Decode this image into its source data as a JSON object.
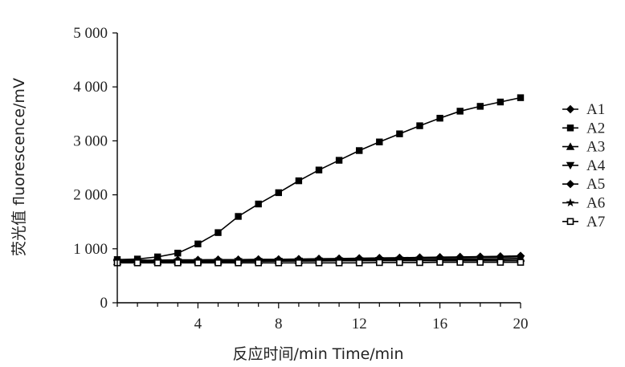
{
  "chart_data": {
    "type": "line",
    "title": "",
    "xlabel": "反应时间/min Time/min",
    "ylabel": "荧光值 fluorescence/mV",
    "xlim": [
      0,
      20
    ],
    "ylim": [
      0,
      5000
    ],
    "x_ticks": [
      4,
      8,
      12,
      16,
      20
    ],
    "x_tick_labels": [
      "4",
      "8",
      "12",
      "16",
      "20"
    ],
    "y_ticks": [
      0,
      1000,
      2000,
      3000,
      4000,
      5000
    ],
    "y_tick_labels": [
      "0",
      "1 000",
      "2 000",
      "3 000",
      "4 000",
      "5 000"
    ],
    "grid": false,
    "legend_position": "right",
    "x": [
      0,
      1,
      2,
      3,
      4,
      5,
      6,
      7,
      8,
      9,
      10,
      11,
      12,
      13,
      14,
      15,
      16,
      17,
      18,
      19,
      20
    ],
    "series": [
      {
        "name": "A1",
        "marker": "diamond",
        "values": [
          780,
          780,
          780,
          780,
          780,
          780,
          780,
          780,
          780,
          780,
          780,
          780,
          780,
          780,
          780,
          780,
          780,
          780,
          780,
          780,
          780
        ]
      },
      {
        "name": "A2",
        "marker": "square",
        "values": [
          800,
          810,
          850,
          920,
          1090,
          1300,
          1600,
          1830,
          2040,
          2260,
          2460,
          2640,
          2820,
          2980,
          3130,
          3280,
          3420,
          3550,
          3640,
          3720,
          3800
        ]
      },
      {
        "name": "A3",
        "marker": "triangle-up",
        "values": [
          760,
          760,
          765,
          765,
          770,
          770,
          775,
          775,
          780,
          780,
          785,
          785,
          790,
          795,
          800,
          800,
          805,
          810,
          810,
          815,
          820
        ]
      },
      {
        "name": "A4",
        "marker": "triangle-down",
        "values": [
          750,
          752,
          755,
          758,
          760,
          762,
          765,
          768,
          770,
          772,
          775,
          778,
          780,
          785,
          790,
          792,
          795,
          798,
          800,
          805,
          810
        ]
      },
      {
        "name": "A5",
        "marker": "diamond",
        "values": [
          790,
          790,
          790,
          795,
          795,
          800,
          800,
          805,
          805,
          810,
          815,
          820,
          825,
          830,
          835,
          840,
          845,
          850,
          855,
          860,
          870
        ]
      },
      {
        "name": "A6",
        "marker": "star",
        "values": [
          770,
          772,
          775,
          778,
          780,
          782,
          785,
          788,
          790,
          795,
          800,
          805,
          810,
          815,
          820,
          825,
          830,
          835,
          840,
          845,
          850
        ]
      },
      {
        "name": "A7",
        "marker": "square-open",
        "values": [
          740,
          740,
          740,
          740,
          740,
          740,
          740,
          740,
          740,
          740,
          740,
          740,
          740,
          745,
          745,
          745,
          750,
          750,
          750,
          750,
          750
        ]
      }
    ]
  }
}
